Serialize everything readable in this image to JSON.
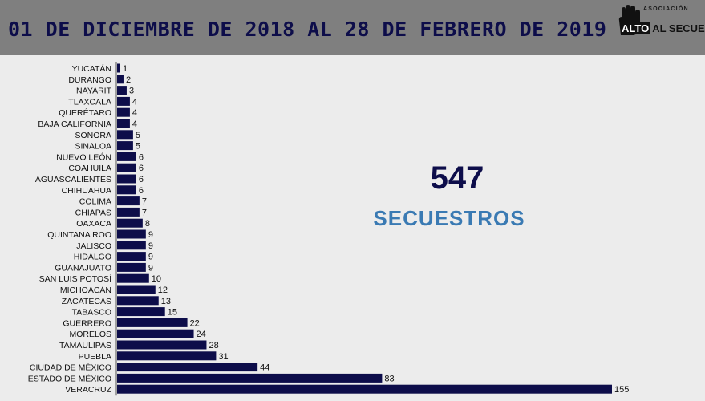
{
  "header": {
    "title": "01 DE DICIEMBRE DE 2018 AL 28 DE FEBRERO DE 2019",
    "logo_tag": "ASOCIACIÓN",
    "logo_name_highlight": "ALTO",
    "logo_name_rest": "AL SECUESTRO"
  },
  "summary": {
    "total": "547",
    "label": "SECUESTROS"
  },
  "colors": {
    "header_bg": "#7f7f7f",
    "bar": "#0d0d4a",
    "accent": "#3a7ab3"
  },
  "chart_data": {
    "type": "bar",
    "orientation": "horizontal",
    "title": "",
    "xlabel": "",
    "ylabel": "",
    "categories": [
      "YUCATÁN",
      "DURANGO",
      "NAYARIT",
      "TLAXCALA",
      "QUERÉTARO",
      "BAJA CALIFORNIA",
      "SONORA",
      "SINALOA",
      "NUEVO LEÓN",
      "COAHUILA",
      "AGUASCALIENTES",
      "CHIHUAHUA",
      "COLIMA",
      "CHIAPAS",
      "OAXACA",
      "QUINTANA ROO",
      "JALISCO",
      "HIDALGO",
      "GUANAJUATO",
      "SAN LUIS POTOSÍ",
      "MICHOACÁN",
      "ZACATECAS",
      "TABASCO",
      "GUERRERO",
      "MORELOS",
      "TAMAULIPAS",
      "PUEBLA",
      "CIUDAD DE MÉXICO",
      "ESTADO DE MÉXICO",
      "VERACRUZ"
    ],
    "values": [
      1,
      2,
      3,
      4,
      4,
      4,
      5,
      5,
      6,
      6,
      6,
      6,
      7,
      7,
      8,
      9,
      9,
      9,
      9,
      10,
      12,
      13,
      15,
      22,
      24,
      28,
      31,
      44,
      83,
      155
    ],
    "xlim": [
      0,
      155
    ],
    "grid": false,
    "data_labels": true
  }
}
